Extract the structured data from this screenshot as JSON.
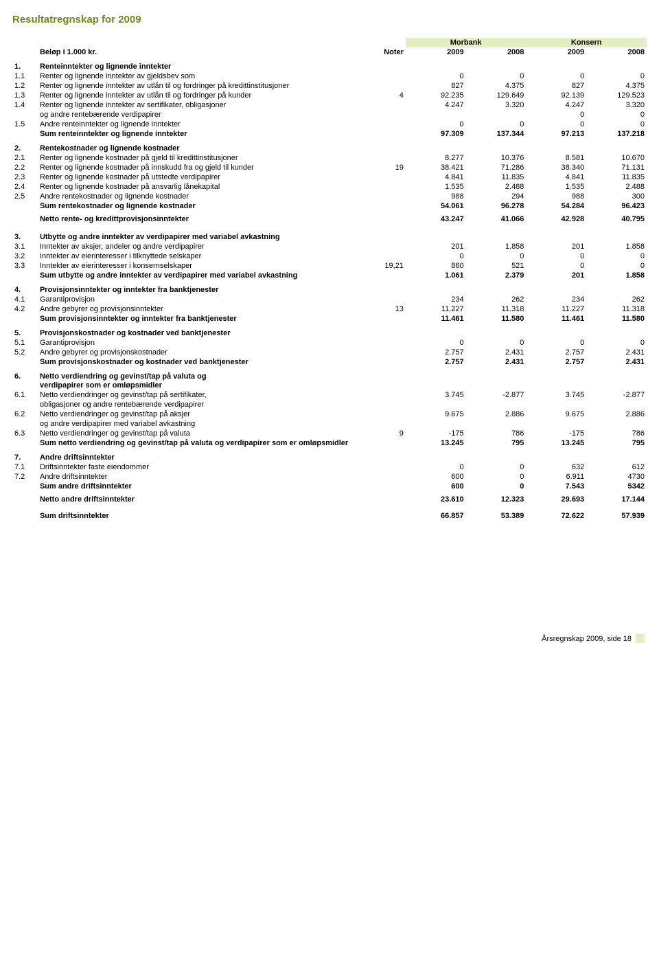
{
  "title": "Resultatregnskap for 2009",
  "unitLabel": "Beløp i 1.000 kr.",
  "noterLabel": "Noter",
  "groups": [
    "Morbank",
    "Konsern"
  ],
  "years": [
    "2009",
    "2008",
    "2009",
    "2008"
  ],
  "colors": {
    "accent": "#6a8a2a",
    "band": "#e3eec7"
  },
  "sections": [
    {
      "idx": "1.",
      "title": "Renteinntekter og lignende inntekter",
      "rows": [
        {
          "idx": "1.1",
          "label": "Renter og lignende inntekter av gjeldsbev som",
          "noter": "",
          "v": [
            "0",
            "0",
            "0",
            "0"
          ]
        },
        {
          "idx": "1.2",
          "label": "Renter og lignende inntekter av utlån til og fordringer på kredittinstitusjoner",
          "noter": "",
          "v": [
            "827",
            "4.375",
            "827",
            "4.375"
          ]
        },
        {
          "idx": "1.3",
          "label": "Renter og lignende inntekter av utlån til og fordringer på kunder",
          "noter": "4",
          "v": [
            "92.235",
            "129.649",
            "92.139",
            "129.523"
          ]
        },
        {
          "idx": "1.4",
          "label": "Renter og lignende inntekter av sertifikater, obligasjoner",
          "noter": "",
          "v": [
            "4.247",
            "3.320",
            "4.247",
            "3.320"
          ]
        },
        {
          "idx": "",
          "label": "og andre rentebærende verdipapirer",
          "noter": "",
          "v": [
            "",
            "",
            "0",
            "0"
          ]
        },
        {
          "idx": "1.5",
          "label": "Andre renteinntekter og lignende inntekter",
          "noter": "",
          "v": [
            "0",
            "0",
            "0",
            "0"
          ]
        }
      ],
      "sum": {
        "label": "Sum renteinntekter og lignende inntekter",
        "v": [
          "97.309",
          "137.344",
          "97.213",
          "137.218"
        ]
      }
    },
    {
      "idx": "2.",
      "title": "Rentekostnader og lignende kostnader",
      "rows": [
        {
          "idx": "2.1",
          "label": "Renter og lignende kostnader på gjeld til kredittinstitusjoner",
          "noter": "",
          "v": [
            "8.277",
            "10.376",
            "8.581",
            "10.670"
          ]
        },
        {
          "idx": "2.2",
          "label": "Renter og lignende kostnader på innskudd fra og gjeld til kunder",
          "noter": "19",
          "v": [
            "38.421",
            "71.286",
            "38.340",
            "71.131"
          ]
        },
        {
          "idx": "2.3",
          "label": "Renter og lignende kostnader på utstedte verdipapirer",
          "noter": "",
          "v": [
            "4.841",
            "11.835",
            "4.841",
            "11.835"
          ]
        },
        {
          "idx": "2.4",
          "label": "Renter og lignende kostnader på ansvarlig lånekapital",
          "noter": "",
          "v": [
            "1.535",
            "2.488",
            "1.535",
            "2.488"
          ]
        },
        {
          "idx": "2.5",
          "label": "Andre rentekostnader og lignende kostnader",
          "noter": "",
          "v": [
            "988",
            "294",
            "988",
            "300"
          ]
        }
      ],
      "sum": {
        "label": "Sum rentekostnader og lignende kostnader",
        "v": [
          "54.061",
          "96.278",
          "54.284",
          "96.423"
        ]
      },
      "net": {
        "label": "Netto rente- og kredittprovisjonsinntekter",
        "v": [
          "43.247",
          "41.066",
          "42.928",
          "40.795"
        ]
      }
    },
    {
      "idx": "3.",
      "title": "Utbytte og andre inntekter av verdipapirer med variabel avkastning",
      "rows": [
        {
          "idx": "3.1",
          "label": "Inntekter av aksjer, andeler og andre verdipapirer",
          "noter": "",
          "v": [
            "201",
            "1.858",
            "201",
            "1.858"
          ]
        },
        {
          "idx": "3.2",
          "label": "Inntekter av eierinteresser i tilknyttede selskaper",
          "noter": "",
          "v": [
            "0",
            "0",
            "0",
            "0"
          ]
        },
        {
          "idx": "3.3",
          "label": "Inntekter av eierinteresser i konsernselskaper",
          "noter": "19,21",
          "v": [
            "860",
            "521",
            "0",
            "0"
          ]
        }
      ],
      "sum": {
        "label": "Sum utbytte og andre inntekter av verdipapirer med variabel avkastning",
        "v": [
          "1.061",
          "2.379",
          "201",
          "1.858"
        ]
      }
    },
    {
      "idx": "4.",
      "title": "Provisjonsinntekter og inntekter fra banktjenester",
      "rows": [
        {
          "idx": "4.1",
          "label": "Garantiprovisjon",
          "noter": "",
          "v": [
            "234",
            "262",
            "234",
            "262"
          ]
        },
        {
          "idx": "4.2",
          "label": "Andre gebyrer og provisjonsinntekter",
          "noter": "13",
          "v": [
            "11.227",
            "11.318",
            "11.227",
            "11.318"
          ]
        }
      ],
      "sum": {
        "label": "Sum provisjonsinntekter og inntekter fra banktjenester",
        "v": [
          "11.461",
          "11.580",
          "11.461",
          "11.580"
        ]
      }
    },
    {
      "idx": "5.",
      "title": "Provisjonskostnader og kostnader ved banktjenester",
      "rows": [
        {
          "idx": "5.1",
          "label": "Garantiprovisjon",
          "noter": "",
          "v": [
            "0",
            "0",
            "0",
            "0"
          ]
        },
        {
          "idx": "5.2",
          "label": "Andre gebyrer og provisjonskostnader",
          "noter": "",
          "v": [
            "2.757",
            "2.431",
            "2.757",
            "2.431"
          ]
        }
      ],
      "sum": {
        "label": "Sum provisjonskostnader og kostnader ved banktjenester",
        "v": [
          "2.757",
          "2.431",
          "2.757",
          "2.431"
        ]
      }
    },
    {
      "idx": "6.",
      "title": "Netto verdiendring og gevinst/tap på valuta og",
      "title2": "verdipapirer som er omløpsmidler",
      "rows": [
        {
          "idx": "6.1",
          "label": "Netto verdiendringer og gevinst/tap på sertifikater,",
          "noter": "",
          "v": [
            "3.745",
            "-2.877",
            "3.745",
            "-2.877"
          ]
        },
        {
          "idx": "",
          "label": "obligasjoner og andre rentebærende verdipapirer",
          "noter": "",
          "v": [
            "",
            "",
            "",
            ""
          ]
        },
        {
          "idx": "6.2",
          "label": "Netto verdiendringer og gevinst/tap på aksjer",
          "noter": "",
          "v": [
            "9.675",
            "2.886",
            "9.675",
            "2.886"
          ]
        },
        {
          "idx": "",
          "label": "og andre verdipapirer med variabel avkastning",
          "noter": "",
          "v": [
            "",
            "",
            "",
            ""
          ]
        },
        {
          "idx": "6.3",
          "label": "Netto verdiendringer og gevinst/tap på valuta",
          "noter": "9",
          "v": [
            "-175",
            "786",
            "-175",
            "786"
          ]
        }
      ],
      "sum": {
        "label": "Sum netto verdiendring og gevinst/tap på valuta og verdipapirer som er omløpsmidler",
        "v": [
          "13.245",
          "795",
          "13.245",
          "795"
        ]
      }
    },
    {
      "idx": "7.",
      "title": "Andre driftsinntekter",
      "rows": [
        {
          "idx": "7.1",
          "label": "Driftsinntekter faste eiendommer",
          "noter": "",
          "v": [
            "0",
            "0",
            "632",
            "612"
          ]
        },
        {
          "idx": "7.2",
          "label": "Andre driftsinntekter",
          "noter": "",
          "v": [
            "600",
            "0",
            "6.911",
            "4730"
          ]
        }
      ],
      "sum": {
        "label": "Sum andre driftsinntekter",
        "v": [
          "600",
          "0",
          "7.543",
          "5342"
        ]
      },
      "net2": [
        {
          "label": "Netto andre driftsinntekter",
          "v": [
            "23.610",
            "12.323",
            "29.693",
            "17.144"
          ]
        },
        {
          "label": "Sum driftsinntekter",
          "v": [
            "66.857",
            "53.389",
            "72.622",
            "57.939"
          ]
        }
      ]
    }
  ],
  "footer": {
    "text": "Årsregnskap  2009, side 18"
  }
}
